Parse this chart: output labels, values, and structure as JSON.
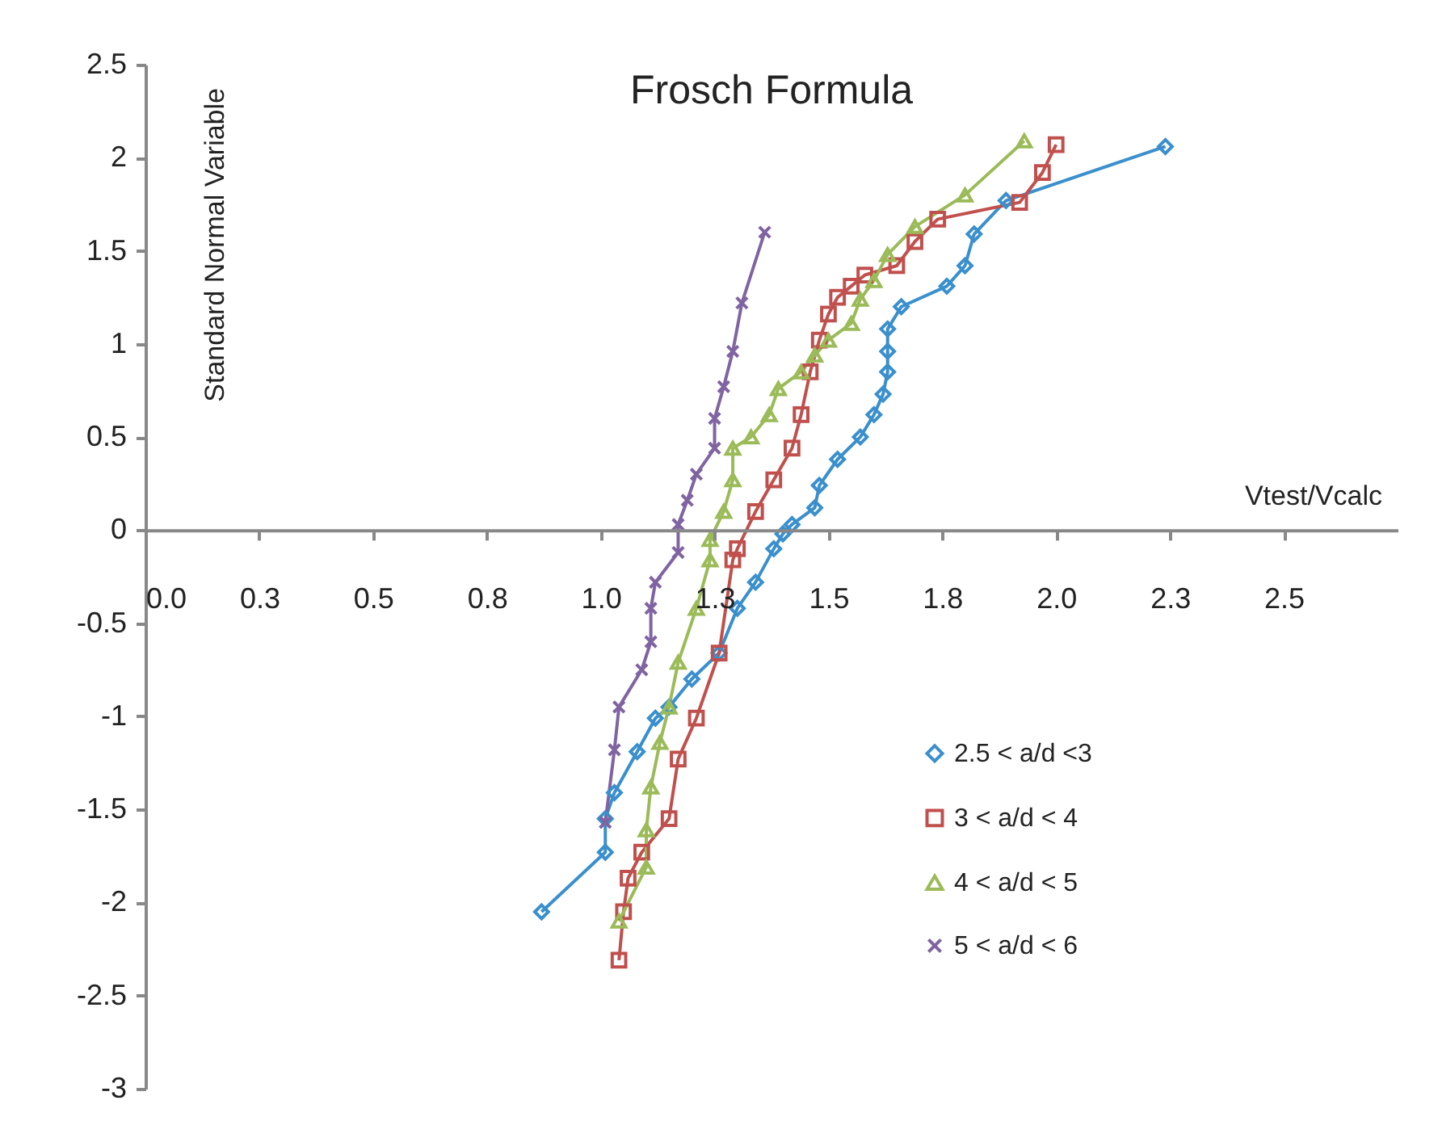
{
  "chart_data": {
    "type": "line",
    "title": "Frosch Formula",
    "xlabel": "Vtest/Vcalc",
    "ylabel": "Standard  Normal  Variable",
    "xlim": [
      0,
      2.75
    ],
    "ylim": [
      -3,
      2.5
    ],
    "xticks": [
      {
        "value": 0,
        "label": "0.0"
      },
      {
        "value": 0.25,
        "label": "0.3"
      },
      {
        "value": 0.5,
        "label": "0.5"
      },
      {
        "value": 0.75,
        "label": "0.8"
      },
      {
        "value": 1,
        "label": "1.0"
      },
      {
        "value": 1.25,
        "label": "1.3"
      },
      {
        "value": 1.5,
        "label": "1.5"
      },
      {
        "value": 1.75,
        "label": "1.8"
      },
      {
        "value": 2,
        "label": "2.0"
      },
      {
        "value": 2.25,
        "label": "2.3"
      },
      {
        "value": 2.5,
        "label": "2.5"
      }
    ],
    "yticks": [
      -3,
      -2.5,
      -2,
      -1.5,
      -1,
      -0.5,
      0,
      0.5,
      1,
      1.5,
      2,
      2.5
    ],
    "grid": false,
    "legend": "bottom right",
    "line_style": "solid",
    "series": [
      {
        "name": "2.5 < a/d <3",
        "color": "#3a8fcd",
        "marker": "diamond",
        "x": [
          0.87,
          1.01,
          1.01,
          1.03,
          1.08,
          1.12,
          1.15,
          1.2,
          1.26,
          1.3,
          1.34,
          1.38,
          1.4,
          1.42,
          1.47,
          1.48,
          1.52,
          1.57,
          1.6,
          1.62,
          1.63,
          1.63,
          1.63,
          1.66,
          1.76,
          1.8,
          1.82,
          1.89,
          2.24
        ],
        "values": [
          -2.05,
          -1.73,
          -1.55,
          -1.41,
          -1.19,
          -1.01,
          -0.95,
          -0.8,
          -0.66,
          -0.42,
          -0.28,
          -0.1,
          -0.02,
          0.03,
          0.12,
          0.24,
          0.38,
          0.5,
          0.62,
          0.73,
          0.85,
          0.96,
          1.08,
          1.2,
          1.31,
          1.42,
          1.59,
          1.77,
          2.06
        ]
      },
      {
        "name": "3 < a/d < 4",
        "color": "#c0504d",
        "marker": "square",
        "x": [
          1.04,
          1.05,
          1.06,
          1.09,
          1.15,
          1.17,
          1.21,
          1.26,
          1.29,
          1.3,
          1.34,
          1.38,
          1.42,
          1.44,
          1.46,
          1.48,
          1.5,
          1.52,
          1.55,
          1.58,
          1.65,
          1.69,
          1.74,
          1.92,
          1.97,
          2.0
        ],
        "values": [
          -2.31,
          -2.05,
          -1.87,
          -1.73,
          -1.55,
          -1.23,
          -1.01,
          -0.66,
          -0.16,
          -0.1,
          0.1,
          0.27,
          0.44,
          0.62,
          0.85,
          1.02,
          1.16,
          1.25,
          1.31,
          1.37,
          1.42,
          1.55,
          1.67,
          1.76,
          1.92,
          2.07
        ]
      },
      {
        "name": "4 < a/d < 5",
        "color": "#9bbb59",
        "marker": "triangle",
        "x": [
          1.04,
          1.1,
          1.1,
          1.11,
          1.13,
          1.15,
          1.17,
          1.21,
          1.24,
          1.24,
          1.27,
          1.29,
          1.29,
          1.33,
          1.37,
          1.39,
          1.44,
          1.47,
          1.5,
          1.55,
          1.57,
          1.6,
          1.63,
          1.69,
          1.8,
          1.93
        ],
        "values": [
          -2.1,
          -1.81,
          -1.61,
          -1.38,
          -1.14,
          -0.95,
          -0.71,
          -0.42,
          -0.16,
          -0.05,
          0.1,
          0.27,
          0.44,
          0.5,
          0.62,
          0.76,
          0.85,
          0.94,
          1.02,
          1.11,
          1.24,
          1.34,
          1.48,
          1.63,
          1.8,
          2.09
        ]
      },
      {
        "name": "5 < a/d < 6",
        "color": "#8064a2",
        "marker": "cross",
        "x": [
          1.01,
          1.03,
          1.04,
          1.09,
          1.11,
          1.11,
          1.12,
          1.17,
          1.17,
          1.19,
          1.21,
          1.25,
          1.25,
          1.27,
          1.29,
          1.31,
          1.36
        ],
        "values": [
          -1.57,
          -1.18,
          -0.95,
          -0.75,
          -0.6,
          -0.42,
          -0.28,
          -0.12,
          0.03,
          0.16,
          0.3,
          0.44,
          0.6,
          0.77,
          0.96,
          1.22,
          1.6
        ]
      }
    ]
  }
}
